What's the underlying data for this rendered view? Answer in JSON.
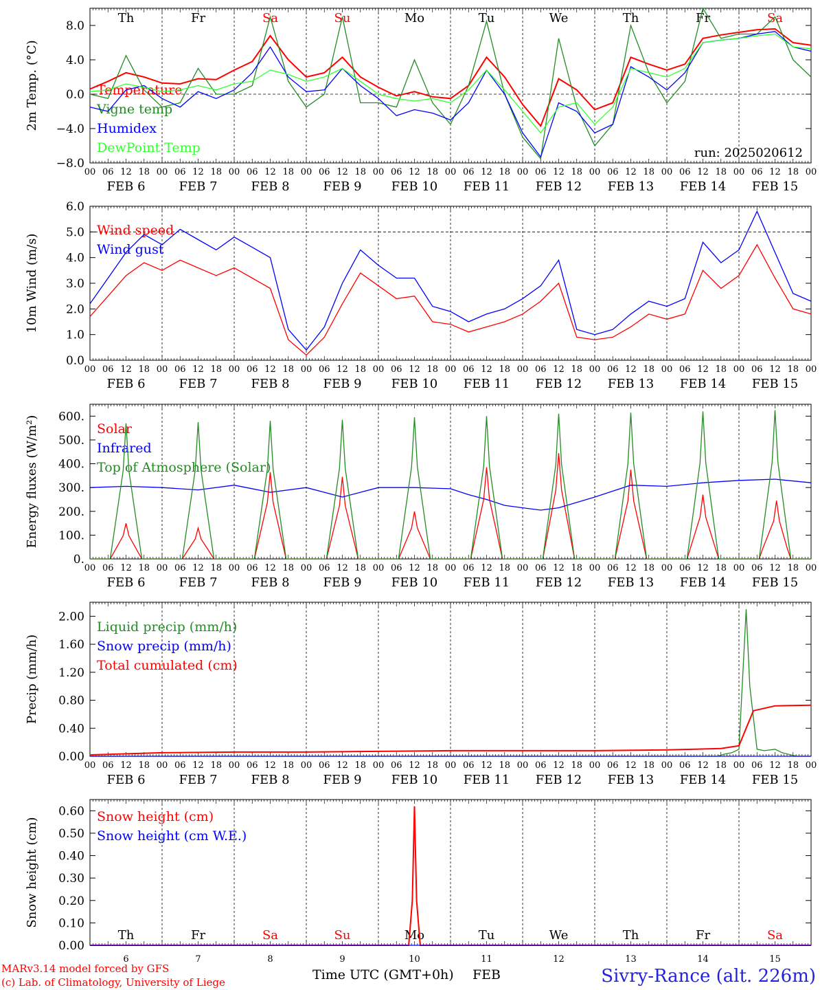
{
  "footer": {
    "model_line": "MARv3.14 model forced by GFS",
    "credit_line": "(c) Lab. of Climatology, University of Liege",
    "time_axis_label": "Time UTC (GMT+0h)",
    "month_label": "FEB",
    "station_title": "Sivry-Rance (alt. 226m)"
  },
  "time_axis": {
    "hour_labels": [
      "00",
      "06",
      "12",
      "18"
    ],
    "end_label": "00",
    "day_labels": [
      "FEB  6",
      "FEB  7",
      "FEB  8",
      "FEB  9",
      "FEB 10",
      "FEB 11",
      "FEB 12",
      "FEB 13",
      "FEB 14",
      "FEB 15"
    ],
    "weekdays": [
      "Th",
      "Fr",
      "Sa",
      "Su",
      "Mo",
      "Tu",
      "We",
      "Th",
      "Fr",
      "Sa"
    ],
    "weekday_colors": [
      "#000000",
      "#000000",
      "#ff0000",
      "#ff0000",
      "#000000",
      "#000000",
      "#000000",
      "#000000",
      "#000000",
      "#ff0000"
    ],
    "bottom_day_numbers": [
      "6",
      "7",
      "8",
      "9",
      "10",
      "11",
      "12",
      "13",
      "14",
      "15"
    ]
  },
  "chart_data": [
    {
      "type": "line",
      "ylabel": "2m Temp. (°C)",
      "ylim": [
        -8,
        10
      ],
      "yticks": [
        "−8.0",
        "−4.0",
        "0.0",
        "4.0",
        "8.0"
      ],
      "ytick_values": [
        -8,
        -4,
        0,
        4,
        8
      ],
      "dashed_line": 0,
      "x_unit": "days since FEB 6 00 UTC",
      "xlim": [
        0,
        10
      ],
      "annotation": "run: 2025020612",
      "series": [
        {
          "name": "Temperature",
          "color": "#ff0000",
          "x": [
            0,
            0.25,
            0.5,
            0.75,
            1,
            1.25,
            1.5,
            1.75,
            2,
            2.25,
            2.5,
            2.75,
            3,
            3.25,
            3.5,
            3.75,
            4,
            4.25,
            4.5,
            4.75,
            5,
            5.25,
            5.5,
            5.75,
            6,
            6.25,
            6.5,
            6.75,
            7,
            7.25,
            7.5,
            7.75,
            8,
            8.25,
            8.5,
            8.75,
            9,
            9.25,
            9.5,
            9.75,
            10
          ],
          "y": [
            0.6,
            1.5,
            2.5,
            2.0,
            1.3,
            1.2,
            1.8,
            1.7,
            2.8,
            3.8,
            6.8,
            4.0,
            2.0,
            2.5,
            4.3,
            2.0,
            0.8,
            -0.2,
            0.3,
            -0.3,
            -0.5,
            1.0,
            4.3,
            2.0,
            -1.2,
            -3.7,
            1.8,
            0.5,
            -1.8,
            -1.0,
            4.3,
            3.5,
            2.8,
            3.5,
            6.5,
            6.9,
            7.2,
            7.5,
            7.6,
            6.0,
            5.7
          ]
        },
        {
          "name": "Vigne temp",
          "color": "#228b22",
          "x": [
            0,
            0.25,
            0.5,
            0.75,
            1,
            1.25,
            1.5,
            1.75,
            2,
            2.25,
            2.5,
            2.75,
            3,
            3.25,
            3.5,
            3.75,
            4,
            4.25,
            4.5,
            4.75,
            5,
            5.25,
            5.5,
            5.75,
            6,
            6.25,
            6.5,
            6.75,
            7,
            7.25,
            7.5,
            7.75,
            8,
            8.25,
            8.5,
            8.75,
            9,
            9.25,
            9.5,
            9.75,
            10
          ],
          "y": [
            0.0,
            -0.5,
            4.5,
            0.5,
            -1.5,
            -1.0,
            3.0,
            0.0,
            0.0,
            1.0,
            9.0,
            1.5,
            -1.5,
            0.0,
            9.0,
            -1.0,
            -1.0,
            -1.5,
            4.0,
            -1.0,
            -3.5,
            1.0,
            8.5,
            0.0,
            -5.0,
            -7.5,
            6.5,
            -1.5,
            -6.0,
            -3.5,
            8.0,
            2.5,
            -1.0,
            1.5,
            10.0,
            6.5,
            7.0,
            7.0,
            9.0,
            4.0,
            2.0
          ]
        },
        {
          "name": "Humidex",
          "color": "#0000ff",
          "x": [
            0,
            0.25,
            0.5,
            0.75,
            1,
            1.25,
            1.5,
            1.75,
            2,
            2.25,
            2.5,
            2.75,
            3,
            3.25,
            3.5,
            3.75,
            4,
            4.25,
            4.5,
            4.75,
            5,
            5.25,
            5.5,
            5.75,
            6,
            6.25,
            6.5,
            6.75,
            7,
            7.25,
            7.5,
            7.75,
            8,
            8.25,
            8.5,
            8.75,
            9,
            9.25,
            9.5,
            9.75,
            10
          ],
          "y": [
            -1.5,
            -2.0,
            0.5,
            1.0,
            -0.5,
            -1.5,
            0.3,
            -0.5,
            0.5,
            2.5,
            5.5,
            2.0,
            0.3,
            0.5,
            3.0,
            1.0,
            -0.5,
            -2.5,
            -1.8,
            -2.2,
            -3.0,
            -1.0,
            2.8,
            0.0,
            -4.5,
            -7.3,
            -1.0,
            -2.0,
            -4.5,
            -3.5,
            3.2,
            2.0,
            0.5,
            2.5,
            6.0,
            6.3,
            6.5,
            7.0,
            7.3,
            5.5,
            5.0
          ]
        },
        {
          "name": "DewPoint Temp",
          "color": "#33ff33",
          "x": [
            0,
            0.25,
            0.5,
            0.75,
            1,
            1.25,
            1.5,
            1.75,
            2,
            2.25,
            2.5,
            2.75,
            3,
            3.25,
            3.5,
            3.75,
            4,
            4.25,
            4.5,
            4.75,
            5,
            5.25,
            5.5,
            5.75,
            6,
            6.25,
            6.5,
            6.75,
            7,
            7.25,
            7.5,
            7.75,
            8,
            8.25,
            8.5,
            8.75,
            9,
            9.25,
            9.5,
            9.75,
            10
          ],
          "y": [
            0.3,
            0.5,
            1.2,
            0.8,
            0.3,
            0.5,
            1.0,
            0.5,
            1.2,
            1.5,
            2.8,
            2.3,
            1.5,
            2.0,
            3.0,
            1.5,
            0.0,
            -0.5,
            -0.8,
            -0.5,
            -1.0,
            0.5,
            2.8,
            0.5,
            -2.0,
            -4.5,
            -1.5,
            -1.0,
            -3.5,
            -1.5,
            3.0,
            2.5,
            2.0,
            3.0,
            6.0,
            6.3,
            6.5,
            6.8,
            7.0,
            5.5,
            5.3
          ]
        }
      ]
    },
    {
      "type": "line",
      "ylabel": "10m Wind (m/s)",
      "ylim": [
        0,
        6
      ],
      "yticks": [
        "0.0",
        "1.0",
        "2.0",
        "3.0",
        "4.0",
        "5.0",
        "6.0"
      ],
      "ytick_values": [
        0,
        1,
        2,
        3,
        4,
        5,
        6
      ],
      "dashed_line": 5,
      "x_unit": "days since FEB 6 00 UTC",
      "xlim": [
        0,
        10
      ],
      "series": [
        {
          "name": "Wind speed",
          "color": "#ff0000",
          "x": [
            0,
            0.25,
            0.5,
            0.75,
            1,
            1.25,
            1.5,
            1.75,
            2,
            2.25,
            2.5,
            2.75,
            3,
            3.25,
            3.5,
            3.75,
            4,
            4.25,
            4.5,
            4.75,
            5,
            5.25,
            5.5,
            5.75,
            6,
            6.25,
            6.5,
            6.75,
            7,
            7.25,
            7.5,
            7.75,
            8,
            8.25,
            8.5,
            8.75,
            9,
            9.25,
            9.5,
            9.75,
            10
          ],
          "y": [
            1.7,
            2.5,
            3.3,
            3.8,
            3.5,
            3.9,
            3.6,
            3.3,
            3.6,
            3.2,
            2.8,
            0.8,
            0.2,
            0.9,
            2.2,
            3.4,
            2.9,
            2.4,
            2.5,
            1.5,
            1.4,
            1.1,
            1.3,
            1.5,
            1.8,
            2.3,
            3.0,
            0.9,
            0.8,
            0.9,
            1.3,
            1.8,
            1.6,
            1.8,
            3.5,
            2.8,
            3.3,
            4.5,
            3.2,
            2.0,
            1.8
          ]
        },
        {
          "name": "Wind gust",
          "color": "#0000ff",
          "x": [
            0,
            0.25,
            0.5,
            0.75,
            1,
            1.25,
            1.5,
            1.75,
            2,
            2.25,
            2.5,
            2.75,
            3,
            3.25,
            3.5,
            3.75,
            4,
            4.25,
            4.5,
            4.75,
            5,
            5.25,
            5.5,
            5.75,
            6,
            6.25,
            6.5,
            6.75,
            7,
            7.25,
            7.5,
            7.75,
            8,
            8.25,
            8.5,
            8.75,
            9,
            9.25,
            9.5,
            9.75,
            10
          ],
          "y": [
            2.2,
            3.2,
            4.2,
            4.9,
            4.5,
            5.1,
            4.7,
            4.3,
            4.8,
            4.4,
            4.0,
            1.2,
            0.4,
            1.3,
            3.0,
            4.3,
            3.7,
            3.2,
            3.2,
            2.1,
            1.9,
            1.5,
            1.8,
            2.0,
            2.4,
            2.9,
            3.9,
            1.2,
            1.0,
            1.2,
            1.8,
            2.3,
            2.1,
            2.4,
            4.6,
            3.8,
            4.3,
            5.8,
            4.2,
            2.6,
            2.3
          ]
        }
      ]
    },
    {
      "type": "line",
      "ylabel": "Energy fluxes (W/m²)",
      "ylim": [
        0,
        650
      ],
      "yticks": [
        "0.",
        "100.",
        "200.",
        "300.",
        "400.",
        "500.",
        "600."
      ],
      "ytick_values": [
        0,
        100,
        200,
        300,
        400,
        500,
        600
      ],
      "x_unit": "days since FEB 6 00 UTC",
      "xlim": [
        0,
        10
      ],
      "series": [
        {
          "name": "Solar",
          "color": "#ff0000",
          "peaks": [
            150,
            130,
            365,
            345,
            200,
            385,
            445,
            375,
            270,
            245
          ],
          "peak_hours": [
            12,
            12,
            12,
            12,
            12,
            12,
            12,
            12,
            12,
            12.5
          ]
        },
        {
          "name": "Infrared",
          "color": "#0000ff",
          "x": [
            0,
            0.5,
            1,
            1.5,
            2,
            2.5,
            3,
            3.5,
            4,
            4.5,
            5,
            5.25,
            5.5,
            5.75,
            6,
            6.25,
            6.5,
            7,
            7.5,
            8,
            8.5,
            9,
            9.5,
            10
          ],
          "y": [
            300,
            305,
            300,
            290,
            310,
            280,
            300,
            260,
            300,
            300,
            295,
            270,
            250,
            225,
            215,
            205,
            215,
            260,
            310,
            305,
            320,
            330,
            335,
            320
          ]
        },
        {
          "name": "Top of Atmosphere (Solar)",
          "color": "#228b22",
          "peaks": [
            570,
            575,
            580,
            585,
            595,
            600,
            610,
            615,
            620,
            625
          ],
          "peak_hours": [
            12,
            12,
            12,
            12,
            12,
            12,
            12,
            12,
            12,
            12
          ]
        }
      ]
    },
    {
      "type": "line",
      "ylabel": "Precip (mm/h)",
      "ylim": [
        0,
        2.2
      ],
      "yticks": [
        "0.00",
        "0.40",
        "0.80",
        "1.20",
        "1.60",
        "2.00"
      ],
      "ytick_values": [
        0,
        0.4,
        0.8,
        1.2,
        1.6,
        2.0
      ],
      "x_unit": "days since FEB 6 00 UTC",
      "xlim": [
        0,
        10
      ],
      "series": [
        {
          "name": "Liquid precip (mm/h)",
          "color": "#228b22",
          "x": [
            0,
            8.7,
            8.8,
            8.9,
            9.0,
            9.1,
            9.15,
            9.25,
            9.35,
            9.5,
            9.6,
            9.8,
            10
          ],
          "y": [
            0,
            0,
            0.03,
            0.05,
            0.1,
            2.1,
            1.0,
            0.1,
            0.08,
            0.1,
            0.05,
            0,
            0
          ]
        },
        {
          "name": "Snow precip (mm/h)",
          "color": "#0000ff",
          "x": [
            0,
            10
          ],
          "y": [
            0,
            0
          ]
        },
        {
          "name": "Total cumulated (cm)",
          "color": "#ff0000",
          "x": [
            0,
            1,
            2,
            3,
            4,
            5,
            6,
            7,
            8,
            8.75,
            9.0,
            9.1,
            9.2,
            9.5,
            10
          ],
          "y": [
            0.02,
            0.05,
            0.06,
            0.06,
            0.07,
            0.08,
            0.08,
            0.08,
            0.09,
            0.11,
            0.15,
            0.4,
            0.65,
            0.72,
            0.73
          ]
        }
      ]
    },
    {
      "type": "line",
      "ylabel": "Snow height (cm)",
      "ylim": [
        0,
        0.65
      ],
      "yticks": [
        "0.00",
        "0.10",
        "0.20",
        "0.30",
        "0.40",
        "0.50",
        "0.60"
      ],
      "ytick_values": [
        0,
        0.1,
        0.2,
        0.3,
        0.4,
        0.5,
        0.6
      ],
      "x_unit": "days since FEB 6 00 UTC",
      "xlim": [
        0,
        10
      ],
      "series": [
        {
          "name": "Snow height (cm)",
          "color": "#ff0000",
          "x": [
            0,
            4.42,
            4.47,
            4.5,
            4.53,
            4.58,
            10
          ],
          "y": [
            0,
            0,
            0.2,
            0.62,
            0.2,
            0,
            0
          ]
        },
        {
          "name": "Snow height (cm W.E.)",
          "color": "#0000ff",
          "x": [
            0,
            10
          ],
          "y": [
            0,
            0
          ]
        }
      ]
    }
  ]
}
